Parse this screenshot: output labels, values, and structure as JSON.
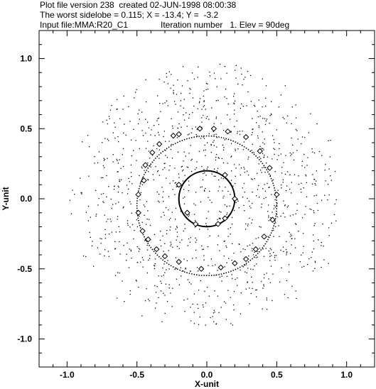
{
  "header": {
    "line1": "Plot file version 238  created 02-JUN-1998 08:00:38",
    "line2": "The worst sidelobe = 0.115; X = -13.4; Y =  -3.2",
    "line3_left": "Input file:MMA:R20_C1",
    "line3_right": "Iteration number   1. Elev = 90deg"
  },
  "chart_data": {
    "type": "scatter",
    "title": "",
    "xlabel": "X-unit",
    "ylabel": "Y-unit",
    "xlim": [
      -1.2,
      1.2
    ],
    "ylim": [
      -1.2,
      1.2
    ],
    "x_ticks": [
      -1.0,
      -0.5,
      0.0,
      0.5,
      1.0
    ],
    "x_tick_labels": [
      "-1.0",
      "-0.5",
      "0.0",
      "0.5",
      "1.0"
    ],
    "y_ticks": [
      1.0,
      0.5,
      0.0,
      -0.5,
      -1.0
    ],
    "y_tick_labels": [
      "1.0",
      "0.5",
      "0.0",
      "-0.5",
      "-1.0"
    ],
    "grid": false,
    "series": [
      {
        "kind": "uv-coverage-dots",
        "radius_max": 1.0,
        "count": 1200,
        "dot_color": "#000000"
      },
      {
        "kind": "circle",
        "center": [
          0.0,
          0.0
        ],
        "radius": 0.2,
        "style": "solid",
        "color": "#000000"
      },
      {
        "kind": "circle",
        "center": [
          0.0,
          -0.05
        ],
        "radius": 0.5,
        "style": "dotted",
        "color": "#000000"
      },
      {
        "kind": "diamond-markers",
        "color": "#000000",
        "points": [
          [
            -0.05,
            0.5
          ],
          [
            0.05,
            0.5
          ],
          [
            0.15,
            0.48
          ],
          [
            0.28,
            0.44
          ],
          [
            0.38,
            0.34
          ],
          [
            0.45,
            0.22
          ],
          [
            0.5,
            0.03
          ],
          [
            0.47,
            -0.15
          ],
          [
            0.41,
            -0.27
          ],
          [
            0.35,
            -0.36
          ],
          [
            0.28,
            -0.43
          ],
          [
            0.2,
            -0.46
          ],
          [
            0.1,
            -0.49
          ],
          [
            -0.04,
            -0.5
          ],
          [
            -0.2,
            -0.45
          ],
          [
            -0.3,
            -0.41
          ],
          [
            -0.36,
            -0.36
          ],
          [
            -0.42,
            -0.29
          ],
          [
            -0.46,
            -0.23
          ],
          [
            -0.49,
            -0.1
          ],
          [
            -0.49,
            0.03
          ],
          [
            -0.44,
            0.24
          ],
          [
            -0.39,
            0.33
          ],
          [
            -0.34,
            0.39
          ],
          [
            -0.24,
            0.45
          ],
          [
            -0.2,
            0.46
          ],
          [
            -0.45,
            0.13
          ],
          [
            -0.2,
            0.1
          ],
          [
            0.13,
            0.17
          ],
          [
            0.2,
            0.0
          ],
          [
            0.13,
            -0.14
          ],
          [
            -0.14,
            -0.1
          ],
          [
            0.08,
            -0.18
          ],
          [
            -0.08,
            -0.18
          ]
        ]
      }
    ]
  }
}
